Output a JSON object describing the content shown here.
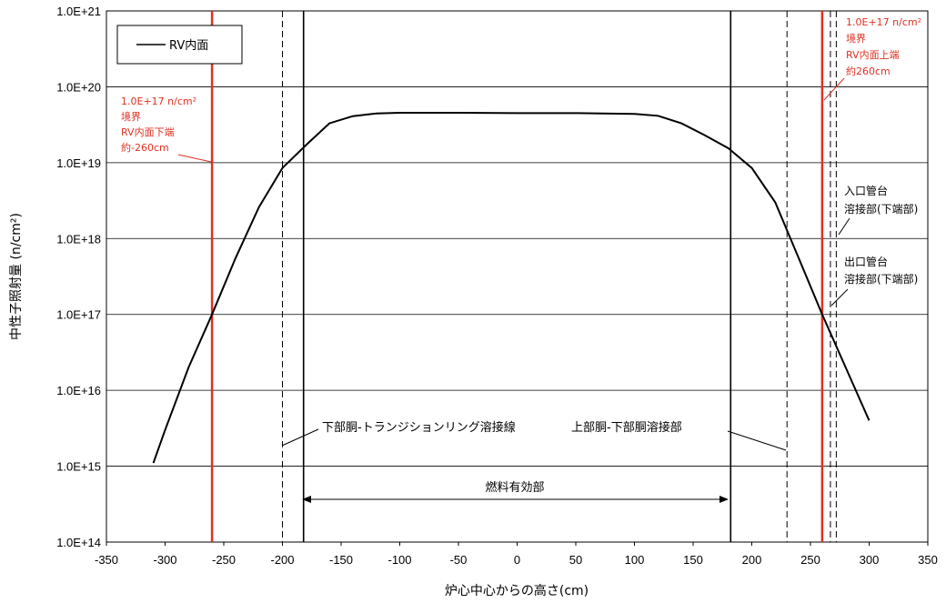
{
  "chart_data": {
    "type": "line",
    "xlabel": "炉心中心からの高さ(cm)",
    "ylabel": "中性子照射量 (n/cm²)",
    "xlim": [
      -350,
      350
    ],
    "ylim": [
      100000000000000.0,
      1e+21
    ],
    "y_scale": "log",
    "grid": true,
    "xticks": [
      -350,
      -300,
      -250,
      -200,
      -150,
      -100,
      -50,
      0,
      50,
      100,
      150,
      200,
      250,
      300,
      350
    ],
    "yticks": [
      {
        "value": 100000000000000.0,
        "label": "1.0E+14"
      },
      {
        "value": 1000000000000000.0,
        "label": "1.0E+15"
      },
      {
        "value": 1e+16,
        "label": "1.0E+16"
      },
      {
        "value": 1e+17,
        "label": "1.0E+17"
      },
      {
        "value": 1e+18,
        "label": "1.0E+18"
      },
      {
        "value": 1e+19,
        "label": "1.0E+19"
      },
      {
        "value": 1e+20,
        "label": "1.0E+20"
      },
      {
        "value": 1e+21,
        "label": "1.0E+21"
      }
    ],
    "series": [
      {
        "name": "RV内面",
        "color": "#000000",
        "x": [
          -310,
          -300,
          -280,
          -260,
          -240,
          -220,
          -200,
          -180,
          -160,
          -140,
          -120,
          -100,
          -50,
          0,
          50,
          100,
          120,
          140,
          160,
          180,
          200,
          220,
          240,
          260,
          280,
          300
        ],
        "y": [
          1100000000000000.0,
          3000000000000000.0,
          2e+16,
          1e+17,
          5.5e+17,
          2.6e+18,
          8.5e+18,
          1.7e+19,
          3.3e+19,
          4.1e+19,
          4.45e+19,
          4.55e+19,
          4.55e+19,
          4.5e+19,
          4.5e+19,
          4.4e+19,
          4.15e+19,
          3.3e+19,
          2.3e+19,
          1.55e+19,
          8.5e+18,
          3e+18,
          5.5e+17,
          1e+17,
          2e+16,
          4000000000000000.0
        ]
      }
    ],
    "legend": {
      "position": "top-left",
      "entries": [
        "RV内面"
      ]
    },
    "red_lines": [
      -260,
      260
    ],
    "solid_lines": [
      -182,
      182
    ],
    "dashed_lines": [
      -200,
      230,
      267,
      272
    ],
    "annotations": {
      "red_left": [
        "1.0E+17 n/cm²",
        "境界",
        "RV内面下端",
        "約-260cm"
      ],
      "red_right": [
        "1.0E+17 n/cm²",
        "境界",
        "RV内面上端",
        "約260cm"
      ],
      "inlet": [
        "入口管台",
        "溶接部(下端部)"
      ],
      "outlet": [
        "出口管台",
        "溶接部(下端部)"
      ],
      "lower_weld": "下部胴-トランジションリング溶接線",
      "upper_weld": "上部胴-下部胴溶接部",
      "fuel": "燃料有効部"
    }
  }
}
